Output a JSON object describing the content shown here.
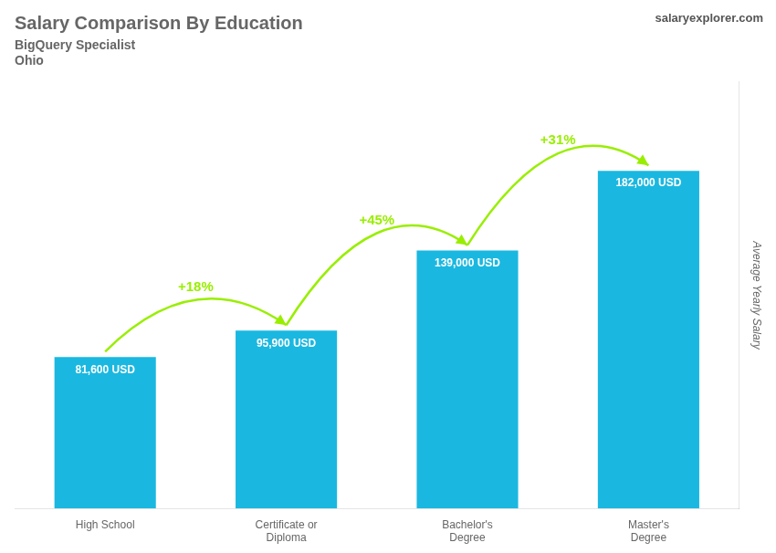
{
  "chart_data": {
    "type": "bar",
    "title": "Salary Comparison By Education",
    "subtitle": [
      "BigQuery Specialist",
      "Ohio"
    ],
    "ylabel": "Average Yearly Salary",
    "categories": [
      "High School",
      "Certificate or\nDiploma",
      "Bachelor's\nDegree",
      "Master's\nDegree"
    ],
    "values": [
      81600,
      95900,
      139000,
      182000
    ],
    "value_labels": [
      "81,600 USD",
      "95,900 USD",
      "139,000 USD",
      "182,000 USD"
    ],
    "data_labels": true,
    "color": "#1ab8e0",
    "ylim": [
      0,
      230000
    ],
    "tick_labels": "x",
    "grid": false,
    "annotations": [
      {
        "text": "salaryexplorer.com"
      },
      {
        "text": "+18%",
        "from": "High School",
        "to": "Certificate or\nDiploma",
        "color": "#99ee00"
      },
      {
        "text": "+45%",
        "from": "Certificate or\nDiploma",
        "to": "Bachelor's\nDegree",
        "color": "#99ee00"
      },
      {
        "text": "+31%",
        "from": "Bachelor's\nDegree",
        "to": "Master's\nDegree",
        "color": "#99ee00"
      }
    ]
  }
}
